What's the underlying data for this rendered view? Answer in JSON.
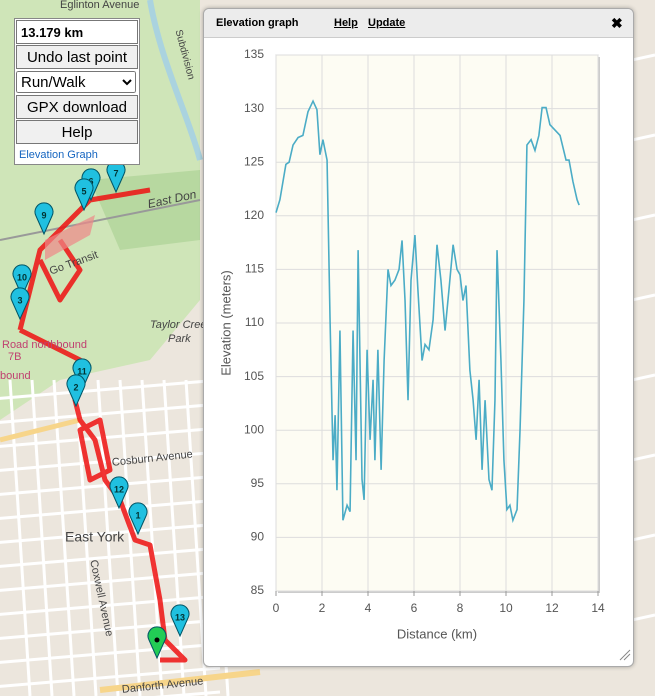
{
  "panel": {
    "distance": "13.179 km",
    "undo": "Undo last point",
    "mode": "Run/Walk",
    "gpx": "GPX download",
    "help": "Help",
    "link": "Elevation Graph"
  },
  "map": {
    "labels": [
      "Eglinton Avenue",
      "Subdivision",
      "East Don",
      "Go Transit",
      "Taylor Creek",
      "Park",
      "Road northbound",
      "7B",
      "bound",
      "Cosburn Avenue",
      "East York",
      "Coxwell Avenue",
      "Danforth Avenue"
    ],
    "markers": [
      "7",
      "6",
      "5",
      "9",
      "10",
      "3",
      "11",
      "2",
      "12",
      "1",
      "13"
    ]
  },
  "popup": {
    "title": "Elevation graph",
    "help": "Help",
    "update": "Update",
    "close": "✖"
  },
  "chart_data": {
    "type": "line",
    "xlabel": "Distance (km)",
    "ylabel": "Elevation (meters)",
    "x": [
      0,
      0.17,
      0.43,
      0.57,
      0.74,
      0.96,
      1.17,
      1.39,
      1.61,
      1.78,
      1.91,
      2.04,
      2.22,
      2.35,
      2.48,
      2.57,
      2.65,
      2.78,
      2.91,
      3.09,
      3.22,
      3.35,
      3.48,
      3.57,
      3.74,
      3.83,
      3.96,
      4.09,
      4.22,
      4.3,
      4.43,
      4.57,
      4.7,
      4.87,
      5,
      5.17,
      5.35,
      5.48,
      5.61,
      5.74,
      5.87,
      6.04,
      6.17,
      6.35,
      6.48,
      6.65,
      6.83,
      7,
      7.17,
      7.35,
      7.52,
      7.7,
      7.87,
      8,
      8.13,
      8.26,
      8.43,
      8.57,
      8.7,
      8.83,
      8.96,
      9.09,
      9.26,
      9.39,
      9.52,
      9.61,
      9.78,
      9.91,
      10.04,
      10.17,
      10.3,
      10.48,
      10.61,
      10.78,
      10.91,
      11.09,
      11.26,
      11.43,
      11.57,
      11.74,
      11.91,
      12.13,
      12.35,
      12.61,
      12.74,
      12.91,
      13.09,
      13.18
    ],
    "series": [
      {
        "color": "#4bacc6",
        "values": [
          120.3,
          121.5,
          124.8,
          125,
          126.6,
          127.3,
          127.5,
          129.7,
          130.7,
          129.9,
          125.7,
          127.1,
          125.2,
          110.3,
          97.2,
          101.4,
          94.4,
          109.3,
          91.6,
          93,
          92.4,
          109.3,
          97.2,
          116.8,
          95.4,
          93.5,
          107.5,
          99.1,
          104.7,
          97.2,
          107.5,
          96.3,
          106.5,
          115,
          113.5,
          114,
          115,
          117.7,
          112.1,
          102.8,
          114,
          118.2,
          113.1,
          106.5,
          108,
          107.5,
          110.3,
          117.3,
          114,
          109.3,
          113.1,
          117.3,
          115,
          114.5,
          112.1,
          113.5,
          105.6,
          102.8,
          99.1,
          104.7,
          96.3,
          102.8,
          95.4,
          94.4,
          102.8,
          116.8,
          106.5,
          97.2,
          92.6,
          93,
          91.6,
          92.6,
          100,
          112.1,
          126.6,
          127.1,
          126.1,
          127.5,
          130.1,
          130.1,
          128.5,
          128,
          127.5,
          125.2,
          125.2,
          123.2,
          121.5,
          121
        ]
      }
    ],
    "xlim": [
      0,
      14
    ],
    "xticks": [
      0,
      2,
      4,
      6,
      8,
      10,
      12,
      14
    ],
    "ylim": [
      85,
      135
    ],
    "yticks": [
      85,
      90,
      95,
      100,
      105,
      110,
      115,
      120,
      125,
      130,
      135
    ],
    "grid": true
  }
}
